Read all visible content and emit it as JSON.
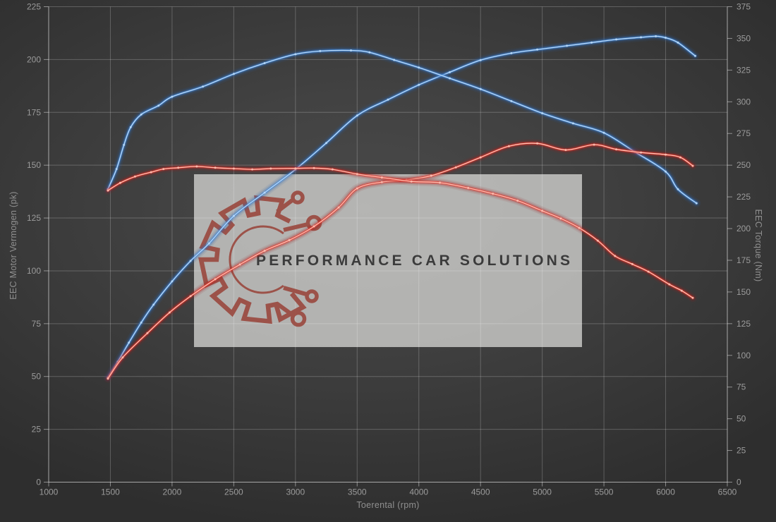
{
  "watermark": {
    "text": "PERFORMANCE CAR SOLUTIONS",
    "logo": "gear-circuit-icon",
    "box_color": "#cfcfcd",
    "box_opacity": 0.8,
    "logo_color": "#9a483e",
    "text_color": "#3b3b3b"
  },
  "colors": {
    "background": "#3c3c3c",
    "grid": "rgba(255,255,255,0.22)",
    "axis": "rgba(255,255,255,0.45)",
    "tick_text": "#9b9b9b",
    "axis_title_text": "#8f8f8f",
    "blue_glow": "#2a63ad",
    "blue_mid": "#4187d8",
    "blue_core": "#b9d9f8",
    "red_glow": "#9e1b1b",
    "red_mid": "#e2342a",
    "red_core": "#ffc0b2"
  },
  "chart_data": {
    "type": "line",
    "title": "",
    "xlabel": "Toerental (rpm)",
    "ylabel_left": "EEC Motor Vermogen (pk)",
    "ylabel_right": "EEC Torque (Nm)",
    "x_range": [
      1000,
      6500
    ],
    "x_ticks": [
      1000,
      1500,
      2000,
      2500,
      3000,
      3500,
      4000,
      4500,
      5000,
      5500,
      6000,
      6500
    ],
    "y_left_range": [
      0,
      225
    ],
    "y_left_ticks": [
      0,
      25,
      50,
      75,
      100,
      125,
      150,
      175,
      200,
      225
    ],
    "y_right_range": [
      0,
      375
    ],
    "y_right_ticks": [
      0,
      25,
      50,
      75,
      100,
      125,
      150,
      175,
      200,
      225,
      250,
      275,
      300,
      325,
      350,
      375
    ],
    "grid": true,
    "legend": "none",
    "markers": true,
    "series": [
      {
        "id": "power-blue",
        "axis": "left",
        "unit": "pk",
        "color": "blue",
        "points": [
          [
            1480,
            49.5
          ],
          [
            1560,
            57
          ],
          [
            1650,
            66
          ],
          [
            1750,
            75.5
          ],
          [
            1850,
            84
          ],
          [
            2000,
            95
          ],
          [
            2150,
            104.7
          ],
          [
            2300,
            113
          ],
          [
            2500,
            126
          ],
          [
            2750,
            137
          ],
          [
            3000,
            148
          ],
          [
            3250,
            160.5
          ],
          [
            3500,
            173.5
          ],
          [
            3750,
            181
          ],
          [
            4000,
            188
          ],
          [
            4250,
            194
          ],
          [
            4500,
            199.7
          ],
          [
            4750,
            203
          ],
          [
            4960,
            204.7
          ],
          [
            5200,
            206.5
          ],
          [
            5400,
            208
          ],
          [
            5600,
            209.5
          ],
          [
            5800,
            210.5
          ],
          [
            5920,
            211
          ],
          [
            6000,
            210.3
          ],
          [
            6100,
            208
          ],
          [
            6240,
            201.7
          ]
        ]
      },
      {
        "id": "torque-blue",
        "axis": "right",
        "unit": "Nm",
        "color": "blue",
        "points": [
          [
            1480,
            231
          ],
          [
            1550,
            247
          ],
          [
            1610,
            266
          ],
          [
            1665,
            280
          ],
          [
            1750,
            290
          ],
          [
            1890,
            297
          ],
          [
            2000,
            304
          ],
          [
            2250,
            312
          ],
          [
            2500,
            322
          ],
          [
            2750,
            330.5
          ],
          [
            3000,
            337.5
          ],
          [
            3200,
            340
          ],
          [
            3450,
            340.5
          ],
          [
            3600,
            339
          ],
          [
            3800,
            333
          ],
          [
            4000,
            327
          ],
          [
            4250,
            318.5
          ],
          [
            4500,
            310
          ],
          [
            4750,
            300.5
          ],
          [
            5000,
            291
          ],
          [
            5250,
            283
          ],
          [
            5500,
            275.5
          ],
          [
            5750,
            260.5
          ],
          [
            6000,
            245
          ],
          [
            6100,
            231
          ],
          [
            6250,
            220
          ]
        ]
      },
      {
        "id": "power-red",
        "axis": "left",
        "unit": "pk",
        "color": "red",
        "points": [
          [
            1480,
            49
          ],
          [
            1600,
            59
          ],
          [
            1800,
            70.5
          ],
          [
            1980,
            80.3
          ],
          [
            2150,
            88
          ],
          [
            2350,
            96
          ],
          [
            2550,
            103
          ],
          [
            2750,
            109.5
          ],
          [
            2950,
            114.5
          ],
          [
            3150,
            121
          ],
          [
            3350,
            130
          ],
          [
            3500,
            139
          ],
          [
            3700,
            142
          ],
          [
            3900,
            143
          ],
          [
            4100,
            145
          ],
          [
            4300,
            149
          ],
          [
            4500,
            153.7
          ],
          [
            4730,
            159
          ],
          [
            4960,
            160.3
          ],
          [
            5190,
            157.2
          ],
          [
            5420,
            159.7
          ],
          [
            5600,
            157.5
          ],
          [
            5800,
            156
          ],
          [
            6000,
            155
          ],
          [
            6120,
            153.7
          ],
          [
            6220,
            149.7
          ]
        ]
      },
      {
        "id": "torque-red",
        "axis": "right",
        "unit": "Nm",
        "color": "red",
        "points": [
          [
            1480,
            230
          ],
          [
            1580,
            236
          ],
          [
            1700,
            241
          ],
          [
            1830,
            244.5
          ],
          [
            1930,
            247
          ],
          [
            2050,
            248
          ],
          [
            2200,
            249
          ],
          [
            2350,
            248
          ],
          [
            2500,
            247.3
          ],
          [
            2650,
            246.7
          ],
          [
            2800,
            247.3
          ],
          [
            3000,
            247.5
          ],
          [
            3150,
            247.7
          ],
          [
            3300,
            246.7
          ],
          [
            3500,
            243
          ],
          [
            3700,
            240.3
          ],
          [
            3940,
            237.2
          ],
          [
            4170,
            236.2
          ],
          [
            4400,
            232
          ],
          [
            4600,
            227.5
          ],
          [
            4800,
            222
          ],
          [
            5000,
            214
          ],
          [
            5150,
            208
          ],
          [
            5300,
            200.5
          ],
          [
            5450,
            190.5
          ],
          [
            5590,
            178.4
          ],
          [
            5730,
            172
          ],
          [
            5860,
            166
          ],
          [
            6030,
            156
          ],
          [
            6130,
            151
          ],
          [
            6220,
            145.3
          ]
        ]
      }
    ]
  }
}
